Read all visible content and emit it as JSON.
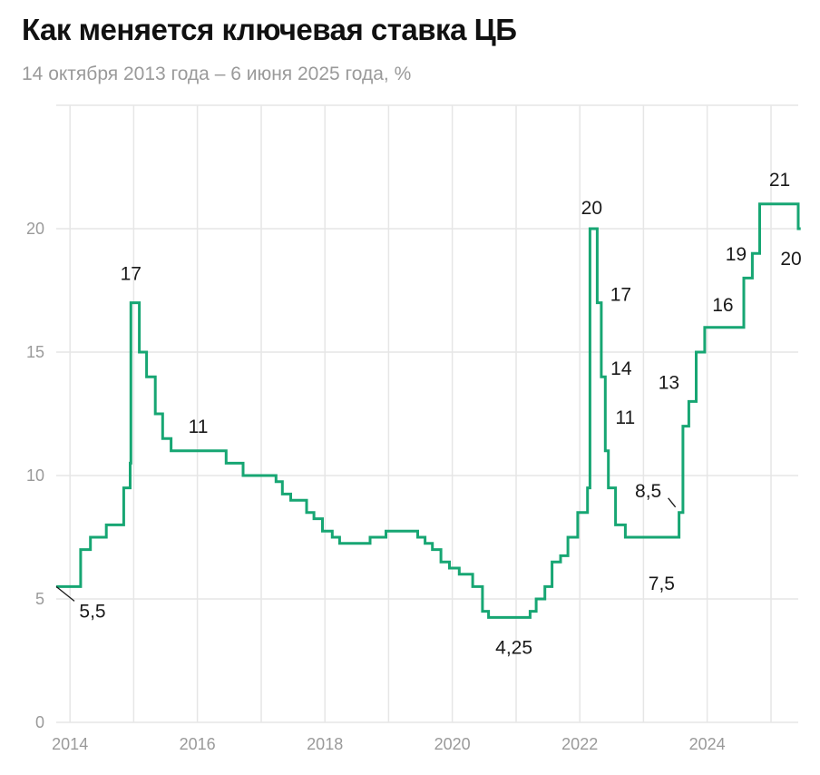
{
  "header": {
    "title": "Как меняется ключевая ставка ЦБ",
    "subtitle": "14 октября 2013 года – 6 июня 2025 года, %"
  },
  "colors": {
    "line": "#17a673",
    "grid": "#e6e6e6",
    "tick": "#9a9a9a",
    "annotation": "#1a1a1a"
  },
  "chart_data": {
    "type": "line",
    "step": true,
    "title": "Как меняется ключевая ставка ЦБ",
    "subtitle": "14 октября 2013 года – 6 июня 2025 года, %",
    "xlabel": "",
    "ylabel": "",
    "xlim": [
      "2013-10-14",
      "2025-06-06"
    ],
    "ylim": [
      0,
      25
    ],
    "yticks": [
      0,
      5,
      10,
      15,
      20
    ],
    "ytick_labels": [
      "0",
      "5",
      "10",
      "15",
      "20"
    ],
    "xticks": [
      "2014-01-01",
      "2016-01-01",
      "2018-01-01",
      "2020-01-01",
      "2022-01-01",
      "2024-01-01"
    ],
    "xtick_labels": [
      "2014",
      "2016",
      "2018",
      "2020",
      "2022",
      "2024"
    ],
    "grid": true,
    "series": [
      {
        "values": [
          [
            "2013-10-14",
            5.5
          ],
          [
            "2014-03-03",
            7
          ],
          [
            "2014-04-28",
            7.5
          ],
          [
            "2014-07-28",
            8
          ],
          [
            "2014-11-05",
            9.5
          ],
          [
            "2014-12-12",
            10.5
          ],
          [
            "2014-12-16",
            17
          ],
          [
            "2015-02-02",
            15
          ],
          [
            "2015-03-16",
            14
          ],
          [
            "2015-05-05",
            12.5
          ],
          [
            "2015-06-16",
            11.5
          ],
          [
            "2015-08-03",
            11
          ],
          [
            "2016-06-14",
            10.5
          ],
          [
            "2016-09-19",
            10
          ],
          [
            "2017-03-27",
            9.75
          ],
          [
            "2017-05-02",
            9.25
          ],
          [
            "2017-06-19",
            9
          ],
          [
            "2017-09-18",
            8.5
          ],
          [
            "2017-10-30",
            8.25
          ],
          [
            "2017-12-18",
            7.75
          ],
          [
            "2018-02-12",
            7.5
          ],
          [
            "2018-03-26",
            7.25
          ],
          [
            "2018-09-17",
            7.5
          ],
          [
            "2018-12-17",
            7.75
          ],
          [
            "2019-06-17",
            7.5
          ],
          [
            "2019-07-29",
            7.25
          ],
          [
            "2019-09-09",
            7
          ],
          [
            "2019-10-28",
            6.5
          ],
          [
            "2019-12-16",
            6.25
          ],
          [
            "2020-02-10",
            6
          ],
          [
            "2020-04-27",
            5.5
          ],
          [
            "2020-06-22",
            4.5
          ],
          [
            "2020-07-27",
            4.25
          ],
          [
            "2021-03-22",
            4.5
          ],
          [
            "2021-04-26",
            5
          ],
          [
            "2021-06-15",
            5.5
          ],
          [
            "2021-07-26",
            6.5
          ],
          [
            "2021-09-13",
            6.75
          ],
          [
            "2021-10-25",
            7.5
          ],
          [
            "2021-12-20",
            8.5
          ],
          [
            "2022-02-14",
            9.5
          ],
          [
            "2022-02-28",
            20
          ],
          [
            "2022-04-11",
            17
          ],
          [
            "2022-05-04",
            14
          ],
          [
            "2022-05-27",
            11
          ],
          [
            "2022-06-14",
            9.5
          ],
          [
            "2022-07-25",
            8
          ],
          [
            "2022-09-19",
            7.5
          ],
          [
            "2023-07-24",
            8.5
          ],
          [
            "2023-08-15",
            12
          ],
          [
            "2023-09-18",
            13
          ],
          [
            "2023-10-30",
            15
          ],
          [
            "2023-12-18",
            16
          ],
          [
            "2024-07-29",
            18
          ],
          [
            "2024-09-16",
            19
          ],
          [
            "2024-10-28",
            21
          ],
          [
            "2025-06-06",
            20
          ],
          [
            "2025-06-20",
            20
          ]
        ]
      }
    ],
    "annotations": [
      {
        "label": "5,5",
        "x": "2013-10-14",
        "y": 5.5
      },
      {
        "label": "17",
        "x": "2014-12-16",
        "y": 17
      },
      {
        "label": "11",
        "x": "2015-08-03",
        "y": 11
      },
      {
        "label": "4,25",
        "x": "2020-07-27",
        "y": 4.25
      },
      {
        "label": "20",
        "x": "2022-02-28",
        "y": 20
      },
      {
        "label": "17",
        "x": "2022-04-11",
        "y": 17
      },
      {
        "label": "14",
        "x": "2022-05-04",
        "y": 14
      },
      {
        "label": "11",
        "x": "2022-05-27",
        "y": 11
      },
      {
        "label": "7,5",
        "x": "2022-09-19",
        "y": 7.5
      },
      {
        "label": "8,5",
        "x": "2023-07-24",
        "y": 8.5
      },
      {
        "label": "13",
        "x": "2023-09-18",
        "y": 13
      },
      {
        "label": "16",
        "x": "2023-12-18",
        "y": 16
      },
      {
        "label": "19",
        "x": "2024-09-16",
        "y": 19
      },
      {
        "label": "21",
        "x": "2024-10-28",
        "y": 21
      },
      {
        "label": "20",
        "x": "2025-06-06",
        "y": 20
      }
    ]
  }
}
